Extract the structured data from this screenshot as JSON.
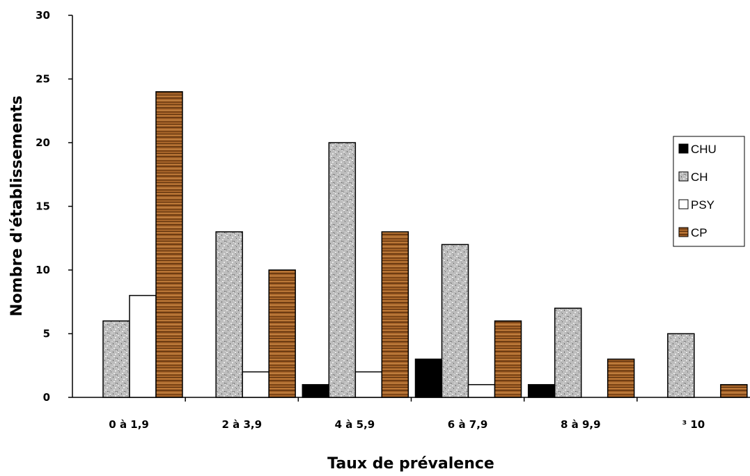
{
  "chart_data": {
    "type": "bar",
    "categories": [
      "0 à 1,9",
      "2 à 3,9",
      "4 à 5,9",
      "6 à 7,9",
      "8 à 9,9",
      "³ 10"
    ],
    "series": [
      {
        "name": "CHU",
        "values": [
          0,
          0,
          1,
          3,
          1,
          0
        ],
        "fill": "solid"
      },
      {
        "name": "CH",
        "values": [
          6,
          13,
          20,
          12,
          7,
          5
        ],
        "fill": "granite"
      },
      {
        "name": "PSY",
        "values": [
          8,
          2,
          2,
          1,
          0,
          0
        ],
        "fill": "white"
      },
      {
        "name": "CP",
        "values": [
          24,
          10,
          13,
          6,
          3,
          1
        ],
        "fill": "wood"
      }
    ],
    "xlabel": "Taux de prévalence",
    "ylabel": "Nombre d'établissements",
    "ylim": [
      0,
      30
    ],
    "yticks": [
      "0",
      "5",
      "10",
      "15",
      "20",
      "25",
      "30"
    ],
    "grid": false,
    "legend_position": "right",
    "colors": {
      "CHU": "#000000",
      "CH": "#b8b8b8",
      "PSY": "#ffffff",
      "CP": "#9a5a22"
    }
  }
}
